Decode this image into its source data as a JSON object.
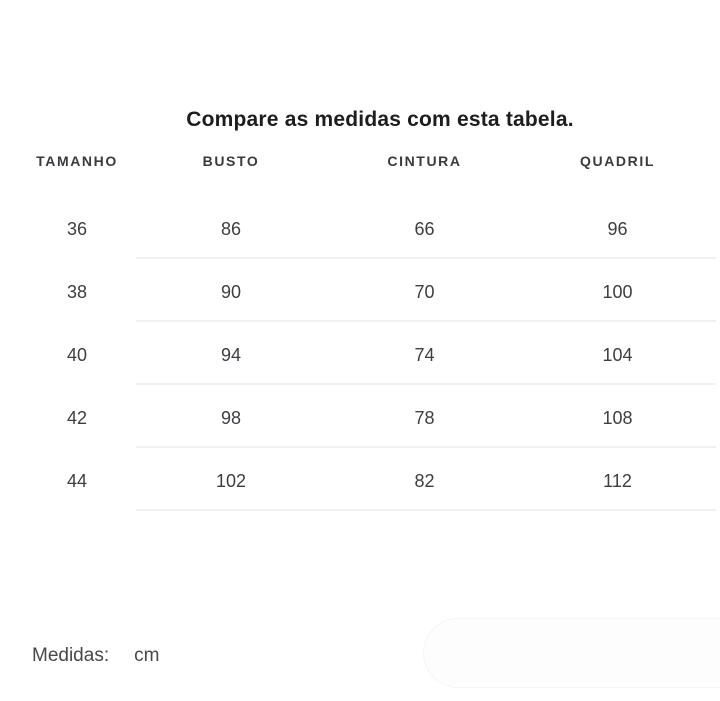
{
  "page": {
    "title": "Compare as medidas com esta tabela."
  },
  "size_table": {
    "headers": [
      "TAMANHO",
      "BUSTO",
      "CINTURA",
      "QUADRIL"
    ],
    "rows": [
      {
        "cells": [
          "36",
          "86",
          "66",
          "96"
        ]
      },
      {
        "cells": [
          "38",
          "90",
          "70",
          "100"
        ]
      },
      {
        "cells": [
          "40",
          "94",
          "74",
          "104"
        ]
      },
      {
        "cells": [
          "42",
          "98",
          "78",
          "108"
        ]
      },
      {
        "cells": [
          "44",
          "102",
          "82",
          "112"
        ]
      }
    ]
  },
  "footer": {
    "label": "Medidas:",
    "unit": "cm"
  },
  "colors": {
    "background": "#ffffff",
    "title_text": "#1d1d1f",
    "table_text": "#3e3e42",
    "header_text": "#3a3a3e",
    "divider": "#f1f1f1",
    "footer_text": "#48484c",
    "ghost_pill": "#fdfdfd"
  }
}
